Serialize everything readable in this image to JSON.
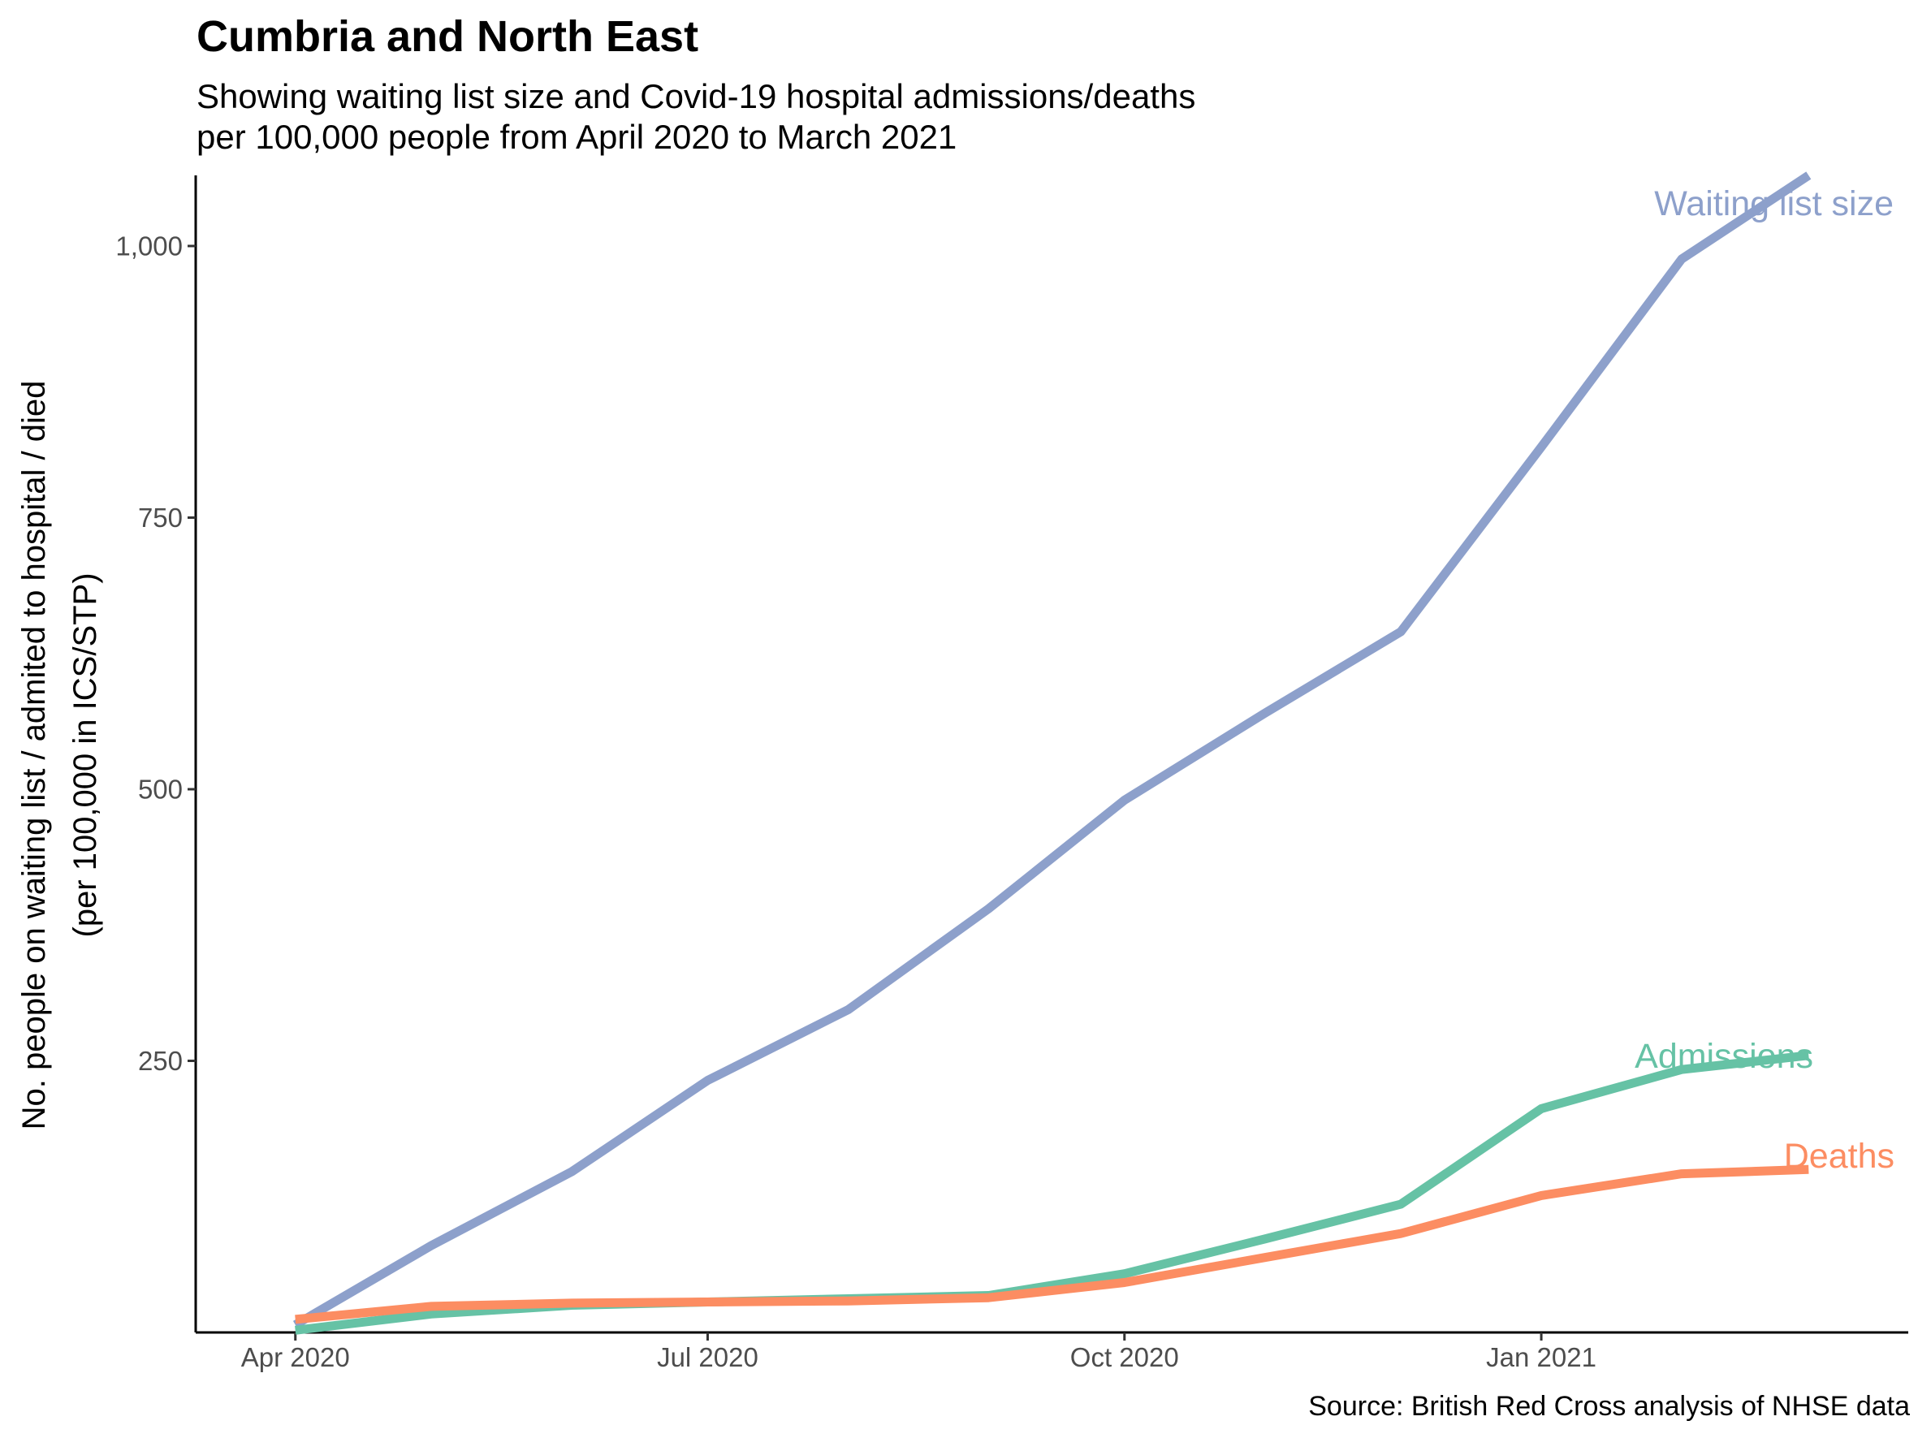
{
  "chart_data": {
    "type": "line",
    "title": "Cumbria and North East",
    "subtitle_lines": [
      "Showing waiting list size and Covid-19 hospital admissions/deaths",
      "per 100,000 people from April 2020 to March 2021"
    ],
    "caption": "Source: British Red Cross analysis of NHSE data",
    "ylabel_lines": [
      "No. people on waiting list / admited to hospital / died",
      "(per 100,000 in ICS/STP)"
    ],
    "xlabel": "",
    "x": [
      "2020-04-01",
      "2020-05-01",
      "2020-06-01",
      "2020-07-01",
      "2020-08-01",
      "2020-09-01",
      "2020-10-01",
      "2020-11-01",
      "2020-12-01",
      "2021-01-01",
      "2021-02-01",
      "2021-03-01"
    ],
    "x_ticks": [
      {
        "date": "2020-04-01",
        "label": "Apr 2020"
      },
      {
        "date": "2020-07-01",
        "label": "Jul 2020"
      },
      {
        "date": "2020-10-01",
        "label": "Oct 2020"
      },
      {
        "date": "2021-01-01",
        "label": "Jan 2021"
      }
    ],
    "y_ticks": [
      {
        "value": 250,
        "label": "250"
      },
      {
        "value": 500,
        "label": "500"
      },
      {
        "value": 750,
        "label": "750"
      },
      {
        "value": 1000,
        "label": "1,000"
      }
    ],
    "ylim": [
      0,
      1065
    ],
    "xlim": [
      "2020-03-10",
      "2021-03-23"
    ],
    "grid": false,
    "series": [
      {
        "name": "Waiting list size",
        "color": "#8da0cb",
        "values": [
          7,
          80,
          148,
          232,
          297,
          390,
          490,
          570,
          645,
          815,
          988,
          1065
        ]
      },
      {
        "name": "Admissions",
        "color": "#66c2a5",
        "values": [
          2,
          17,
          25,
          28,
          31,
          34,
          54,
          86,
          118,
          206,
          242,
          255
        ]
      },
      {
        "name": "Deaths",
        "color": "#fc8d62",
        "values": [
          12,
          24,
          27,
          28,
          29,
          32,
          46,
          69,
          91,
          126,
          146,
          150
        ]
      }
    ]
  }
}
